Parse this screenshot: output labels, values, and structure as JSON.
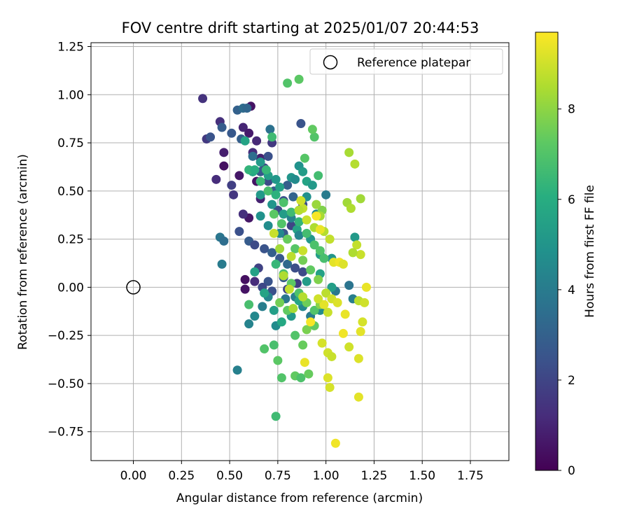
{
  "chart_data": {
    "type": "scatter",
    "title": "FOV centre drift starting at 2025/01/07 20:44:53",
    "xlabel": "Angular distance from reference (arcmin)",
    "ylabel": "Rotation from reference (arcmin)",
    "xlim": [
      -0.22,
      1.95
    ],
    "ylim": [
      -0.9,
      1.27
    ],
    "xticks": [
      0.0,
      0.25,
      0.5,
      0.75,
      1.0,
      1.25,
      1.5,
      1.75
    ],
    "xtick_labels": [
      "0.00",
      "0.25",
      "0.50",
      "0.75",
      "1.00",
      "1.25",
      "1.50",
      "1.75"
    ],
    "yticks": [
      -0.75,
      -0.5,
      -0.25,
      0.0,
      0.25,
      0.5,
      0.75,
      1.0,
      1.25
    ],
    "ytick_labels": [
      "−0.75",
      "−0.50",
      "−0.25",
      "0.00",
      "0.25",
      "0.50",
      "0.75",
      "1.00",
      "1.25"
    ],
    "grid": true,
    "legend": {
      "position": "top-right",
      "label": "Reference platepar"
    },
    "reference_point": {
      "x": 0.0,
      "y": 0.0
    },
    "colorbar": {
      "label": "Hours from first FF file",
      "colormap": "viridis",
      "range": [
        0,
        9.7
      ],
      "ticks": [
        0,
        2,
        4,
        6,
        8
      ],
      "tick_labels": [
        "0",
        "2",
        "4",
        "6",
        "8"
      ]
    },
    "points": [
      [
        0.36,
        0.98,
        1.4
      ],
      [
        0.38,
        0.77,
        1.6
      ],
      [
        0.45,
        0.86,
        1.3
      ],
      [
        0.47,
        0.7,
        0.8
      ],
      [
        0.47,
        0.63,
        0.4
      ],
      [
        0.43,
        0.56,
        1.2
      ],
      [
        0.51,
        0.53,
        1.8
      ],
      [
        0.52,
        0.48,
        1.5
      ],
      [
        0.55,
        0.58,
        0.6
      ],
      [
        0.57,
        0.83,
        1.0
      ],
      [
        0.6,
        0.8,
        0.7
      ],
      [
        0.61,
        0.94,
        0.5
      ],
      [
        0.62,
        0.7,
        1.2
      ],
      [
        0.64,
        0.76,
        1.1
      ],
      [
        0.66,
        0.67,
        0.9
      ],
      [
        0.68,
        0.62,
        2.0
      ],
      [
        0.7,
        0.68,
        2.4
      ],
      [
        0.72,
        0.75,
        1.6
      ],
      [
        0.64,
        0.55,
        0.5
      ],
      [
        0.66,
        0.46,
        0.9
      ],
      [
        0.6,
        0.36,
        0.6
      ],
      [
        0.57,
        0.38,
        1.3
      ],
      [
        0.4,
        0.78,
        2.5
      ],
      [
        0.46,
        0.83,
        2.8
      ],
      [
        0.51,
        0.8,
        2.7
      ],
      [
        0.54,
        0.92,
        3.0
      ],
      [
        0.57,
        0.93,
        3.4
      ],
      [
        0.59,
        0.93,
        3.2
      ],
      [
        0.56,
        0.77,
        2.9
      ],
      [
        0.62,
        0.68,
        3.5
      ],
      [
        0.66,
        0.6,
        2.6
      ],
      [
        0.7,
        0.55,
        2.2
      ],
      [
        0.73,
        0.5,
        2.8
      ],
      [
        0.78,
        0.45,
        2.4
      ],
      [
        0.8,
        0.53,
        2.9
      ],
      [
        0.83,
        0.47,
        3.1
      ],
      [
        0.86,
        0.4,
        2.6
      ],
      [
        0.87,
        0.85,
        2.5
      ],
      [
        0.71,
        0.82,
        3.6
      ],
      [
        0.75,
        0.4,
        2.2
      ],
      [
        0.78,
        0.28,
        2.6
      ],
      [
        0.82,
        0.32,
        2.0
      ],
      [
        0.88,
        0.43,
        2.3
      ],
      [
        0.55,
        0.29,
        2.4
      ],
      [
        0.6,
        0.24,
        2.8
      ],
      [
        0.63,
        0.22,
        2.2
      ],
      [
        0.68,
        0.2,
        2.5
      ],
      [
        0.72,
        0.18,
        2.9
      ],
      [
        0.76,
        0.15,
        2.7
      ],
      [
        0.8,
        0.12,
        3.3
      ],
      [
        0.65,
        0.1,
        1.9
      ],
      [
        0.7,
        0.03,
        2.5
      ],
      [
        0.78,
        0.05,
        2.8
      ],
      [
        0.84,
        0.1,
        2.3
      ],
      [
        0.58,
        -0.01,
        0.5
      ],
      [
        0.58,
        0.04,
        0.4
      ],
      [
        0.63,
        0.03,
        1.2
      ],
      [
        0.67,
        0.0,
        2.1
      ],
      [
        0.72,
        -0.02,
        2.4
      ],
      [
        0.8,
        -0.01,
        2.0
      ],
      [
        0.85,
        0.02,
        1.7
      ],
      [
        0.88,
        0.08,
        2.2
      ],
      [
        0.45,
        0.26,
        3.8
      ],
      [
        0.47,
        0.24,
        3.5
      ],
      [
        0.46,
        0.12,
        4.0
      ],
      [
        0.54,
        -0.43,
        4.2
      ],
      [
        0.6,
        -0.19,
        4.3
      ],
      [
        0.63,
        -0.15,
        4.5
      ],
      [
        0.67,
        -0.1,
        4.1
      ],
      [
        0.7,
        -0.05,
        4.4
      ],
      [
        0.74,
        -0.2,
        4.6
      ],
      [
        0.79,
        -0.06,
        3.8
      ],
      [
        0.84,
        -0.05,
        4.2
      ],
      [
        0.88,
        -0.1,
        4.5
      ],
      [
        0.92,
        -0.15,
        4.0
      ],
      [
        0.97,
        -0.12,
        4.6
      ],
      [
        1.0,
        0.48,
        4.0
      ],
      [
        1.05,
        -0.02,
        3.9
      ],
      [
        1.12,
        0.01,
        3.7
      ],
      [
        1.14,
        -0.06,
        4.1
      ],
      [
        0.62,
        0.6,
        5.0
      ],
      [
        0.66,
        0.65,
        5.2
      ],
      [
        0.7,
        0.58,
        5.4
      ],
      [
        0.74,
        0.56,
        5.1
      ],
      [
        0.76,
        0.52,
        5.5
      ],
      [
        0.82,
        0.57,
        5.0
      ],
      [
        0.86,
        0.63,
        4.9
      ],
      [
        0.88,
        0.6,
        5.3
      ],
      [
        0.9,
        0.55,
        5.6
      ],
      [
        0.93,
        0.53,
        5.2
      ],
      [
        0.58,
        0.76,
        5.6
      ],
      [
        0.62,
        0.6,
        5.8
      ],
      [
        0.66,
        0.48,
        5.2
      ],
      [
        0.72,
        0.43,
        5.0
      ],
      [
        0.78,
        0.38,
        5.3
      ],
      [
        0.85,
        0.3,
        5.6
      ],
      [
        0.92,
        0.25,
        5.1
      ],
      [
        0.97,
        0.17,
        5.4
      ],
      [
        1.03,
        0.15,
        5.0
      ],
      [
        1.15,
        0.26,
        5.2
      ],
      [
        0.63,
        0.08,
        5.5
      ],
      [
        0.68,
        -0.03,
        5.6
      ],
      [
        0.73,
        -0.12,
        5.4
      ],
      [
        0.77,
        -0.18,
        5.8
      ],
      [
        0.82,
        -0.15,
        5.2
      ],
      [
        0.86,
        -0.07,
        5.7
      ],
      [
        0.9,
        0.03,
        5.3
      ],
      [
        0.97,
        0.07,
        5.5
      ],
      [
        1.03,
        0.0,
        5.4
      ],
      [
        0.84,
        0.56,
        4.6
      ],
      [
        0.9,
        0.47,
        4.8
      ],
      [
        0.95,
        0.38,
        4.5
      ],
      [
        0.82,
        0.36,
        4.3
      ],
      [
        0.86,
        0.27,
        4.4
      ],
      [
        0.66,
        0.37,
        4.9
      ],
      [
        0.7,
        0.32,
        4.7
      ],
      [
        0.76,
        0.28,
        4.5
      ],
      [
        0.6,
        0.61,
        6.3
      ],
      [
        0.63,
        0.61,
        6.0
      ],
      [
        0.69,
        0.61,
        6.4
      ],
      [
        0.72,
        0.78,
        6.6
      ],
      [
        0.8,
        1.06,
        7.0
      ],
      [
        0.86,
        1.08,
        7.2
      ],
      [
        0.89,
        0.67,
        7.1
      ],
      [
        0.94,
        0.78,
        7.0
      ],
      [
        0.96,
        0.58,
        6.7
      ],
      [
        0.93,
        0.82,
        7.3
      ],
      [
        0.66,
        0.55,
        6.5
      ],
      [
        0.7,
        0.5,
        6.8
      ],
      [
        0.74,
        0.48,
        6.2
      ],
      [
        0.78,
        0.44,
        6.9
      ],
      [
        0.82,
        0.39,
        6.6
      ],
      [
        0.86,
        0.34,
        6.3
      ],
      [
        0.9,
        0.28,
        6.7
      ],
      [
        0.94,
        0.22,
        6.9
      ],
      [
        0.97,
        0.19,
        7.0
      ],
      [
        0.99,
        0.15,
        6.8
      ],
      [
        0.73,
        0.38,
        7.2
      ],
      [
        0.77,
        0.33,
        7.0
      ],
      [
        0.8,
        0.25,
        7.4
      ],
      [
        0.84,
        0.2,
        7.1
      ],
      [
        0.88,
        0.14,
        7.6
      ],
      [
        0.92,
        0.09,
        7.3
      ],
      [
        0.96,
        0.04,
        7.8
      ],
      [
        0.74,
        0.12,
        6.4
      ],
      [
        0.78,
        0.07,
        6.8
      ],
      [
        0.82,
        0.02,
        7.2
      ],
      [
        0.86,
        -0.03,
        6.9
      ],
      [
        0.9,
        -0.08,
        7.5
      ],
      [
        0.94,
        -0.12,
        7.0
      ],
      [
        0.76,
        -0.08,
        7.6
      ],
      [
        0.8,
        -0.12,
        7.3
      ],
      [
        0.84,
        -0.25,
        7.0
      ],
      [
        0.88,
        -0.3,
        7.4
      ],
      [
        0.9,
        -0.22,
        7.7
      ],
      [
        0.73,
        -0.3,
        6.8
      ],
      [
        0.75,
        -0.38,
        7.2
      ],
      [
        0.68,
        -0.32,
        7.0
      ],
      [
        0.84,
        -0.46,
        7.3
      ],
      [
        0.87,
        -0.47,
        6.9
      ],
      [
        0.91,
        -0.45,
        7.4
      ],
      [
        0.74,
        -0.67,
        6.6
      ],
      [
        0.77,
        -0.47,
        7.0
      ],
      [
        0.94,
        -0.2,
        7.3
      ],
      [
        0.97,
        -0.09,
        7.9
      ],
      [
        0.6,
        -0.09,
        6.8
      ],
      [
        0.98,
        0.4,
        7.8
      ],
      [
        0.95,
        0.43,
        8.2
      ],
      [
        0.97,
        0.37,
        8.4
      ],
      [
        0.94,
        0.31,
        8.5
      ],
      [
        0.88,
        0.41,
        8.8
      ],
      [
        0.87,
        0.45,
        9.0
      ],
      [
        0.86,
        0.4,
        8.6
      ],
      [
        0.9,
        0.35,
        8.9
      ],
      [
        0.99,
        0.29,
        8.6
      ],
      [
        1.02,
        0.25,
        8.8
      ],
      [
        1.04,
        0.13,
        9.3
      ],
      [
        1.07,
        0.13,
        9.5
      ],
      [
        1.09,
        0.12,
        9.2
      ],
      [
        1.11,
        0.44,
        8.3
      ],
      [
        1.13,
        0.41,
        8.5
      ],
      [
        1.12,
        0.7,
        8.4
      ],
      [
        1.15,
        0.64,
        8.6
      ],
      [
        1.18,
        0.46,
        8.3
      ],
      [
        1.16,
        0.22,
        8.8
      ],
      [
        1.18,
        0.17,
        8.9
      ],
      [
        1.14,
        0.18,
        8.5
      ],
      [
        1.0,
        -0.03,
        8.7
      ],
      [
        1.03,
        -0.06,
        9.0
      ],
      [
        1.06,
        -0.08,
        9.2
      ],
      [
        0.99,
        -0.09,
        9.3
      ],
      [
        1.01,
        -0.13,
        8.9
      ],
      [
        1.1,
        -0.14,
        9.4
      ],
      [
        1.17,
        -0.07,
        8.7
      ],
      [
        1.2,
        -0.08,
        9.0
      ],
      [
        1.21,
        0.0,
        9.4
      ],
      [
        1.19,
        -0.18,
        9.1
      ],
      [
        1.18,
        -0.23,
        9.3
      ],
      [
        1.09,
        -0.24,
        9.5
      ],
      [
        1.12,
        -0.31,
        9.0
      ],
      [
        0.98,
        -0.29,
        9.1
      ],
      [
        1.01,
        -0.34,
        9.0
      ],
      [
        1.03,
        -0.36,
        8.9
      ],
      [
        1.17,
        -0.37,
        9.2
      ],
      [
        0.89,
        -0.39,
        9.4
      ],
      [
        1.01,
        -0.47,
        9.2
      ],
      [
        1.02,
        -0.52,
        9.1
      ],
      [
        1.17,
        -0.57,
        9.3
      ],
      [
        1.05,
        -0.81,
        9.5
      ],
      [
        0.92,
        -0.18,
        9.6
      ],
      [
        0.96,
        -0.06,
        9.0
      ],
      [
        0.83,
        -0.11,
        8.4
      ],
      [
        0.88,
        -0.05,
        8.6
      ],
      [
        0.81,
        -0.01,
        8.8
      ],
      [
        0.78,
        0.06,
        8.5
      ],
      [
        0.82,
        0.16,
        8.7
      ],
      [
        0.76,
        0.2,
        8.3
      ],
      [
        0.73,
        0.28,
        8.9
      ],
      [
        0.95,
        0.37,
        9.6
      ],
      [
        0.97,
        0.3,
        9.4
      ],
      [
        0.88,
        0.19,
        8.9
      ]
    ]
  }
}
